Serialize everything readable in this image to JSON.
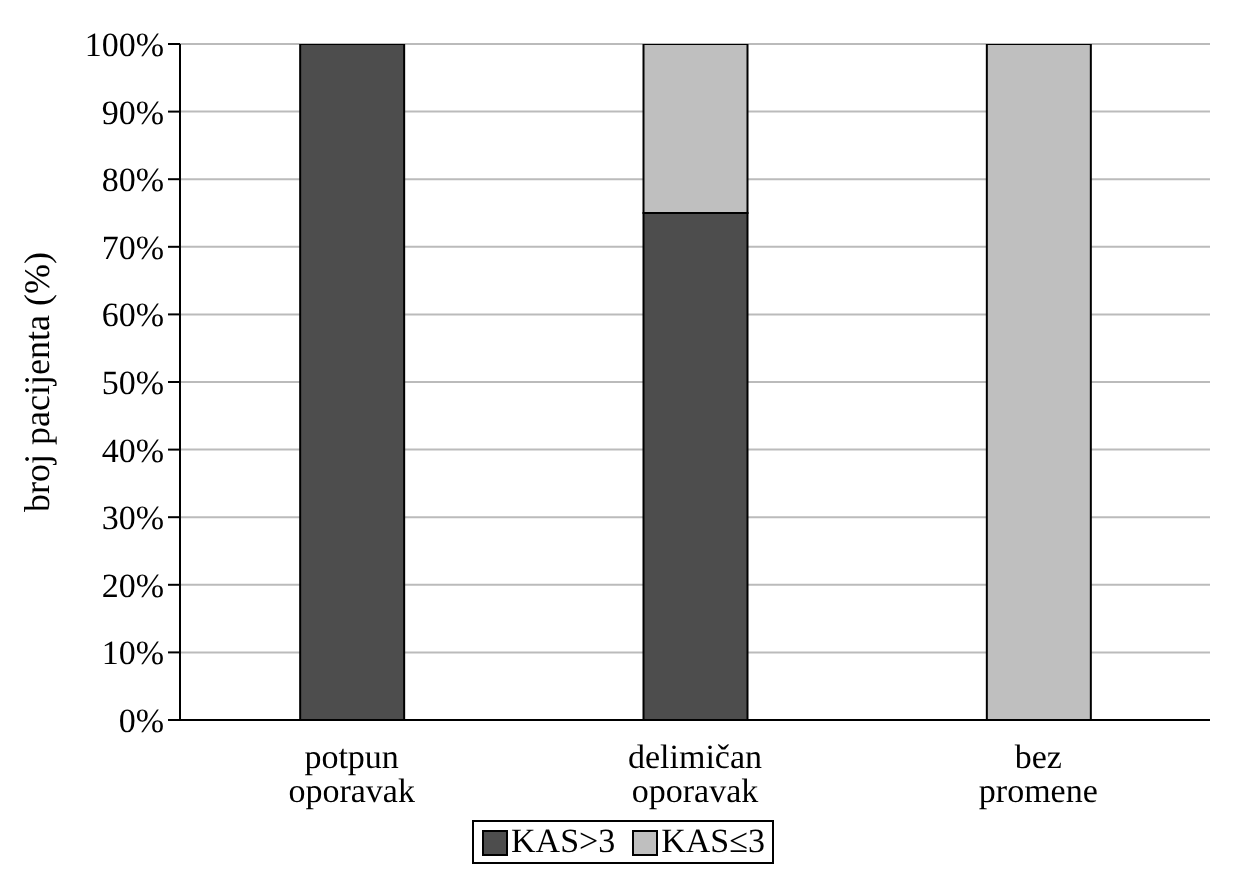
{
  "chart_data": {
    "type": "bar",
    "stacked": true,
    "ylabel": "broj pacijenta (%)",
    "categories": [
      "potpun\noporavak",
      "delimičan\noporavak",
      "bez\npromene"
    ],
    "series": [
      {
        "name": "KAS>3",
        "color": "#4d4d4d",
        "values": [
          100,
          75,
          0
        ]
      },
      {
        "name": "KAS≤3",
        "color": "#bfbfbf",
        "values": [
          0,
          25,
          100
        ]
      }
    ],
    "ylim": [
      0,
      100
    ],
    "yticks": [
      {
        "value": 0,
        "label": "0%"
      },
      {
        "value": 10,
        "label": "10%"
      },
      {
        "value": 20,
        "label": "20%"
      },
      {
        "value": 30,
        "label": "30%"
      },
      {
        "value": 40,
        "label": "40%"
      },
      {
        "value": 50,
        "label": "50%"
      },
      {
        "value": 60,
        "label": "60%"
      },
      {
        "value": 70,
        "label": "70%"
      },
      {
        "value": 80,
        "label": "80%"
      },
      {
        "value": 90,
        "label": "90%"
      },
      {
        "value": 100,
        "label": "100%"
      }
    ],
    "grid": "y",
    "legend": "bottom"
  }
}
